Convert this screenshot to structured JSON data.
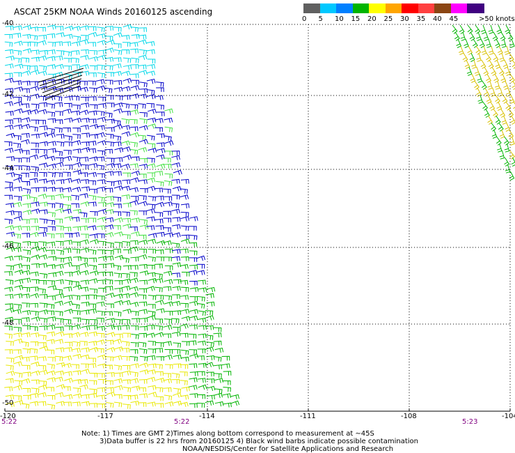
{
  "title": "ASCAT 25KM NOAA Winds 20160125 ascending",
  "legend": {
    "unit_label": ">50 knots",
    "swatches": [
      {
        "from": 0,
        "color": "#606060"
      },
      {
        "from": 5,
        "color": "#00c8ff"
      },
      {
        "from": 10,
        "color": "#0080ff"
      },
      {
        "from": 15,
        "color": "#00b400"
      },
      {
        "from": 20,
        "color": "#ffff00"
      },
      {
        "from": 25,
        "color": "#ffa500"
      },
      {
        "from": 30,
        "color": "#ff0000"
      },
      {
        "from": 35,
        "color": "#ff4040"
      },
      {
        "from": 40,
        "color": "#8b4513"
      },
      {
        "from": 45,
        "color": "#ff00ff"
      },
      {
        "from": 50,
        "color": "#400080"
      }
    ],
    "labels": [
      "0",
      "5",
      "10",
      "15",
      "20",
      "25",
      "30",
      "35",
      "40",
      "45"
    ]
  },
  "lat_labels": [
    "-40",
    "-42",
    "-44",
    "-46",
    "-48",
    "-50"
  ],
  "lon_labels": [
    "-120",
    "-117",
    "-114",
    "-111",
    "-108",
    "-104"
  ],
  "time_labels": [
    "5:22",
    "5:22",
    "5:23"
  ],
  "notes": {
    "line1": "Note: 1) Times are GMT 2)Times along bottom correspond to measurement at ~45S",
    "line2": "3)Data buffer is 22 hrs from 20160125 4) Black wind barbs indicate possible contamination",
    "line3": "NOAA/NESDIS/Center for Satellite Applications and Research"
  },
  "colors": {
    "cyan": "#00d8e8",
    "blue": "#0000c8",
    "green": "#00b400",
    "lightgreen": "#40e040",
    "yellow": "#e8e800",
    "gold": "#d8c000",
    "black": "#000000"
  }
}
